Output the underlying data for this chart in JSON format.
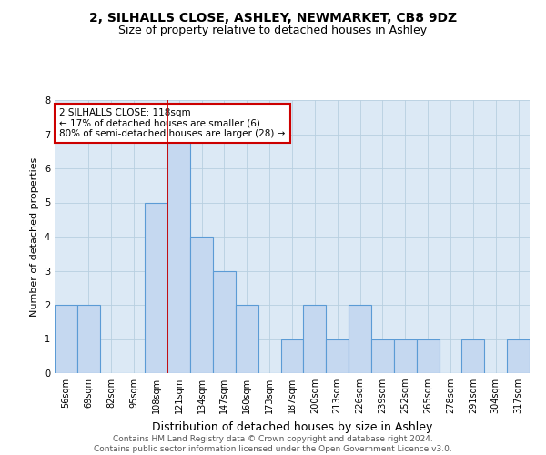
{
  "title1": "2, SILHALLS CLOSE, ASHLEY, NEWMARKET, CB8 9DZ",
  "title2": "Size of property relative to detached houses in Ashley",
  "xlabel": "Distribution of detached houses by size in Ashley",
  "ylabel": "Number of detached properties",
  "categories": [
    "56sqm",
    "69sqm",
    "82sqm",
    "95sqm",
    "108sqm",
    "121sqm",
    "134sqm",
    "147sqm",
    "160sqm",
    "173sqm",
    "187sqm",
    "200sqm",
    "213sqm",
    "226sqm",
    "239sqm",
    "252sqm",
    "265sqm",
    "278sqm",
    "291sqm",
    "304sqm",
    "317sqm"
  ],
  "values": [
    2,
    2,
    0,
    0,
    5,
    7,
    4,
    3,
    2,
    0,
    1,
    2,
    1,
    2,
    1,
    1,
    1,
    0,
    1,
    0,
    1
  ],
  "bar_color": "#c5d8f0",
  "bar_edge_color": "#5b9bd5",
  "highlight_index": 5,
  "highlight_line_color": "#cc0000",
  "annotation_text": "2 SILHALLS CLOSE: 118sqm\n← 17% of detached houses are smaller (6)\n80% of semi-detached houses are larger (28) →",
  "annotation_box_color": "#ffffff",
  "annotation_box_edge_color": "#cc0000",
  "ylim": [
    0,
    8
  ],
  "yticks": [
    0,
    1,
    2,
    3,
    4,
    5,
    6,
    7,
    8
  ],
  "grid_color": "#b8cfe0",
  "background_color": "#dce9f5",
  "footnote": "Contains HM Land Registry data © Crown copyright and database right 2024.\nContains public sector information licensed under the Open Government Licence v3.0.",
  "title1_fontsize": 10,
  "title2_fontsize": 9,
  "xlabel_fontsize": 9,
  "ylabel_fontsize": 8,
  "tick_fontsize": 7,
  "annotation_fontsize": 7.5,
  "footnote_fontsize": 6.5
}
